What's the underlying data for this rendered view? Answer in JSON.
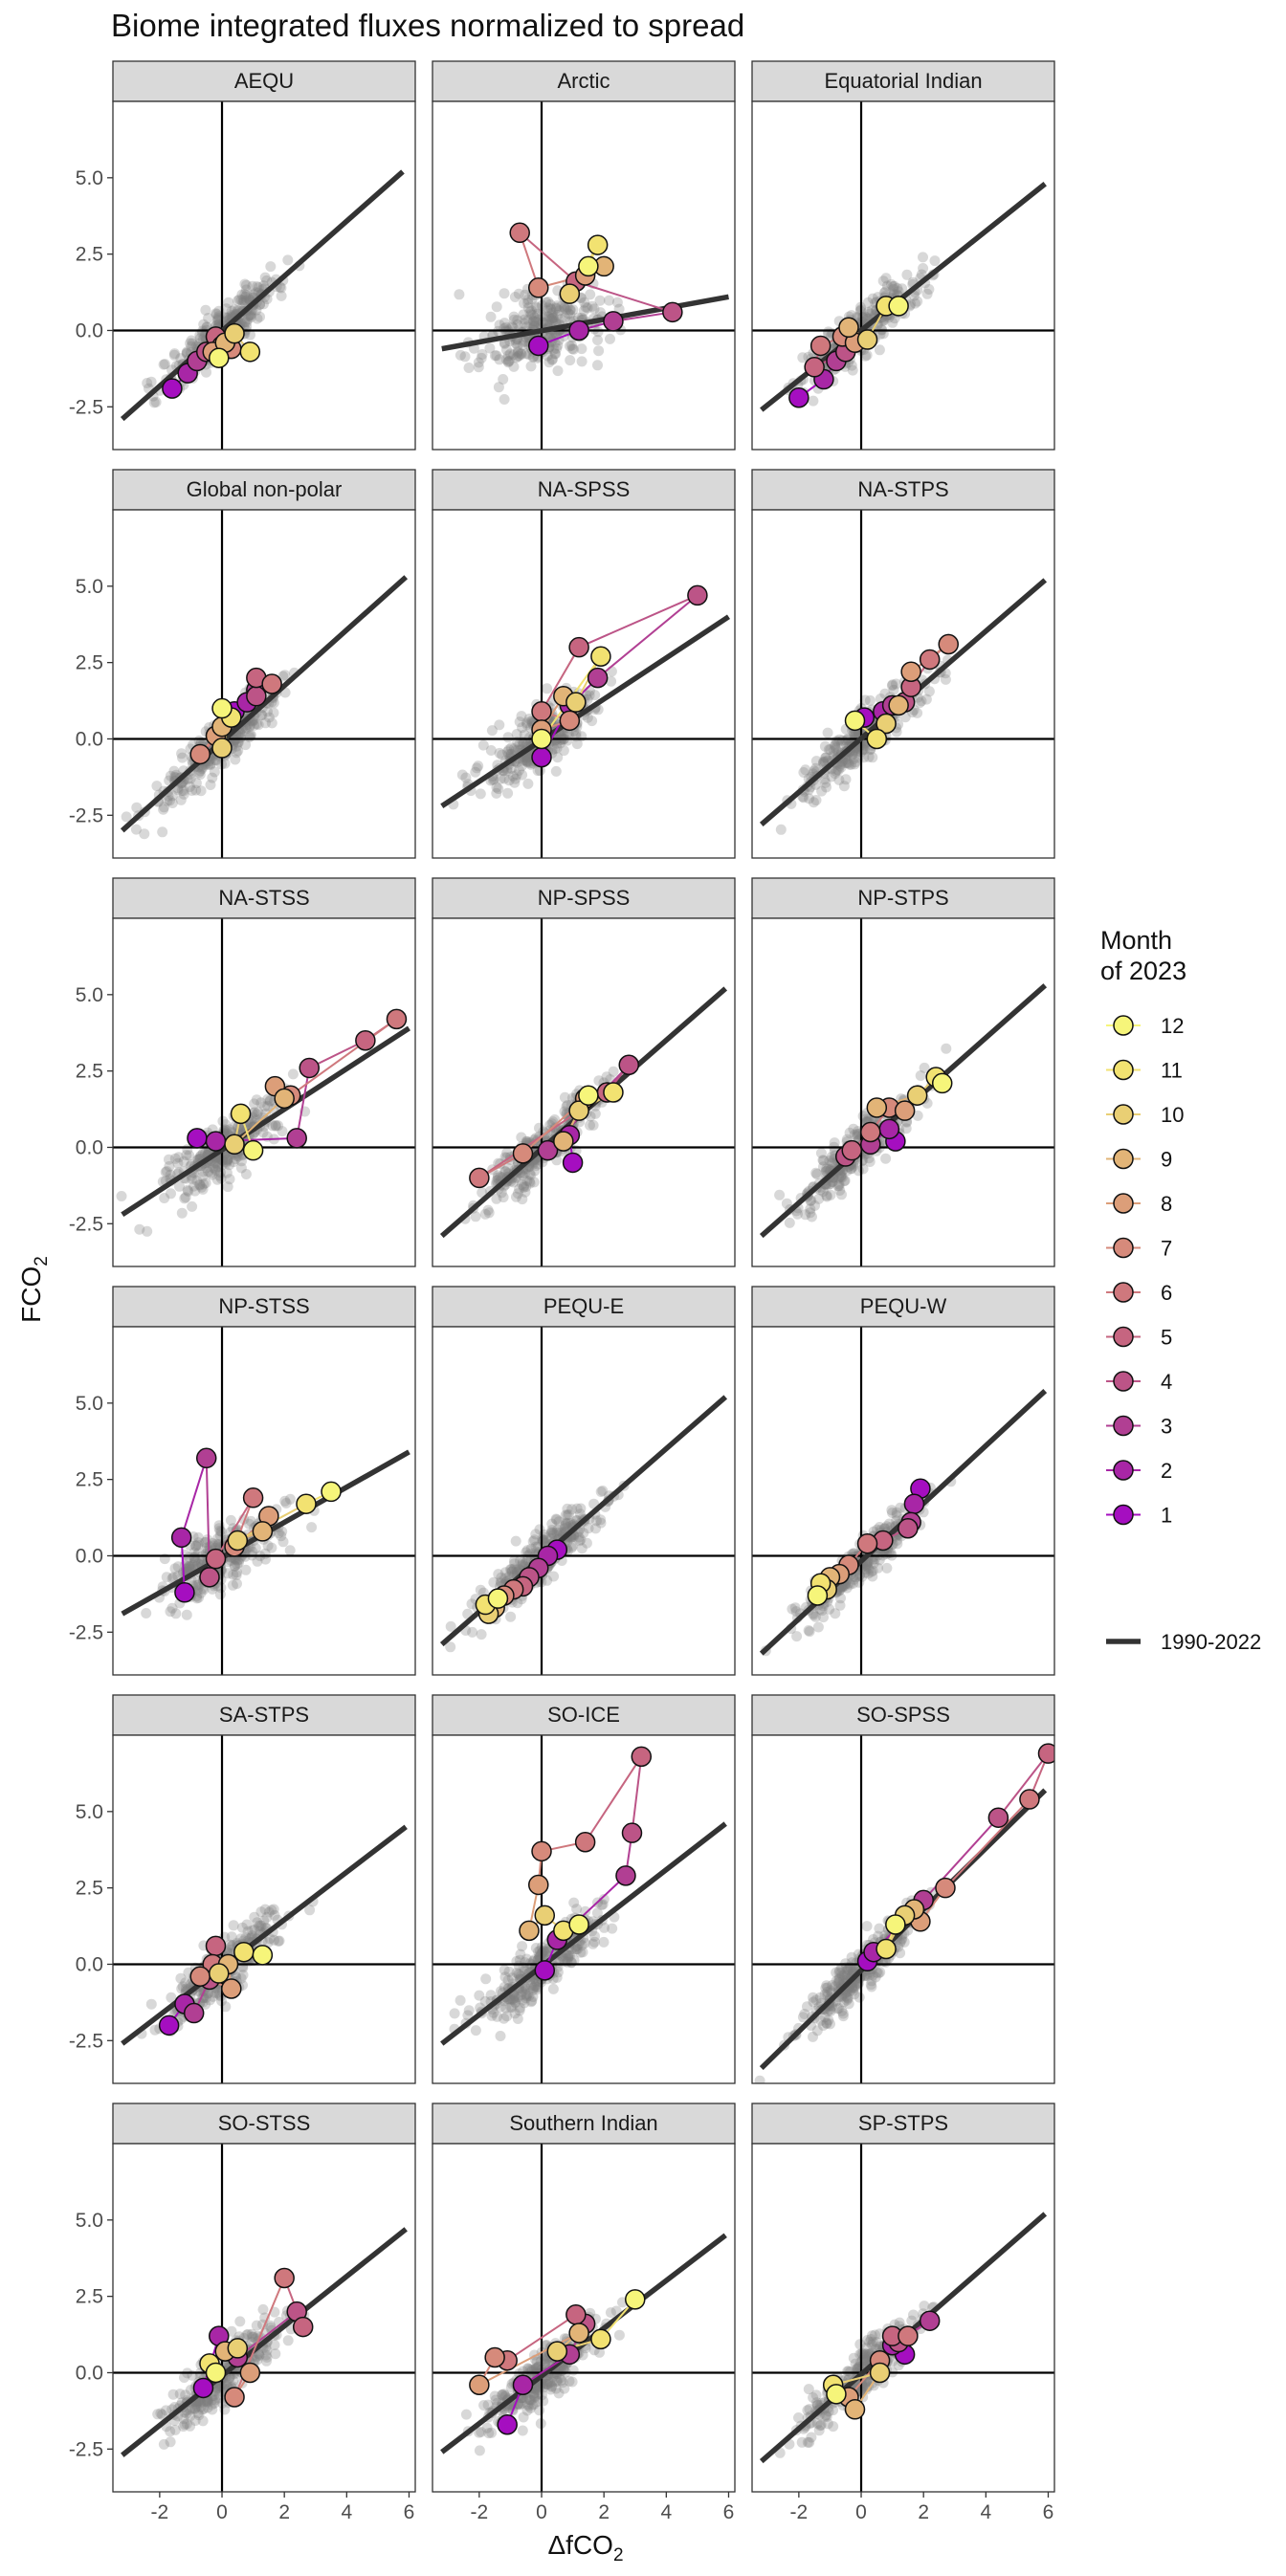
{
  "chart_data": {
    "type": "scatter",
    "title": "Biome integrated fluxes normalized to spread",
    "xlabel": "ΔfCO2",
    "ylabel": "FCO2",
    "xlim": [
      -3.5,
      6.2
    ],
    "ylim": [
      -3.9,
      7.5
    ],
    "x_ticks": [
      -2,
      0,
      2,
      4,
      6
    ],
    "y_ticks": [
      -2.5,
      0.0,
      2.5,
      5.0
    ],
    "x_tick_labels": [
      "-2",
      "0",
      "2",
      "4",
      "6"
    ],
    "y_tick_labels": [
      "-2.5",
      "0.0",
      "2.5",
      "5.0"
    ],
    "grid": false,
    "legend_position": "right",
    "legend": {
      "title_line1": "Month",
      "title_line2": "of 2023",
      "entries": [
        {
          "label": "12",
          "color": "#f6f57a"
        },
        {
          "label": "11",
          "color": "#f2e271"
        },
        {
          "label": "10",
          "color": "#e9cf74"
        },
        {
          "label": "9",
          "color": "#e2b477"
        },
        {
          "label": "8",
          "color": "#dc9e79"
        },
        {
          "label": "7",
          "color": "#d68a7b"
        },
        {
          "label": "6",
          "color": "#cf787d"
        },
        {
          "label": "5",
          "color": "#c66580"
        },
        {
          "label": "4",
          "color": "#bc5487"
        },
        {
          "label": "3",
          "color": "#b13f93"
        },
        {
          "label": "2",
          "color": "#a826a6"
        },
        {
          "label": "1",
          "color": "#a50ec0"
        }
      ],
      "line_label": "1990-2022"
    },
    "reference_color": "#333333",
    "background_points_color": "#7f7f7f",
    "panels": [
      {
        "name": "AEQU",
        "fit": [
          [
            -3.2,
            -2.9
          ],
          [
            5.8,
            5.2
          ]
        ],
        "months": [
          [
            -1.6,
            -1.9
          ],
          [
            -1.1,
            -1.4
          ],
          [
            -0.8,
            -1.0
          ],
          [
            -0.5,
            -0.7
          ],
          [
            -0.2,
            -0.2
          ],
          [
            0.0,
            -0.5
          ],
          [
            0.3,
            -0.6
          ],
          [
            -0.3,
            -0.7
          ],
          [
            0.1,
            -0.4
          ],
          [
            0.4,
            -0.1
          ],
          [
            0.9,
            -0.7
          ],
          [
            -0.1,
            -0.9
          ]
        ]
      },
      {
        "name": "Arctic",
        "fit": [
          [
            -3.2,
            -0.6
          ],
          [
            6.0,
            1.1
          ]
        ],
        "months": [
          [
            -0.1,
            -0.5
          ],
          [
            1.2,
            0.0
          ],
          [
            2.3,
            0.3
          ],
          [
            4.2,
            0.6
          ],
          [
            1.1,
            1.6
          ],
          [
            -0.7,
            3.2
          ],
          [
            -0.1,
            1.4
          ],
          [
            1.4,
            1.8
          ],
          [
            2.0,
            2.1
          ],
          [
            0.9,
            1.2
          ],
          [
            1.8,
            2.8
          ],
          [
            1.5,
            2.1
          ]
        ]
      },
      {
        "name": "Equatorial Indian",
        "fit": [
          [
            -3.2,
            -2.6
          ],
          [
            5.9,
            4.8
          ]
        ],
        "months": [
          [
            -2.0,
            -2.2
          ],
          [
            -1.2,
            -1.6
          ],
          [
            -0.8,
            -1.0
          ],
          [
            -0.5,
            -0.7
          ],
          [
            -1.5,
            -1.2
          ],
          [
            -1.3,
            -0.5
          ],
          [
            -0.6,
            -0.2
          ],
          [
            -0.2,
            -0.4
          ],
          [
            -0.4,
            0.1
          ],
          [
            0.2,
            -0.3
          ],
          [
            0.8,
            0.8
          ],
          [
            1.2,
            0.8
          ]
        ]
      },
      {
        "name": "Global non-polar",
        "fit": [
          [
            -3.2,
            -3.0
          ],
          [
            5.9,
            5.3
          ]
        ],
        "months": [
          [
            0.4,
            0.9
          ],
          [
            0.8,
            1.2
          ],
          [
            1.1,
            1.6
          ],
          [
            1.1,
            1.4
          ],
          [
            1.1,
            2.0
          ],
          [
            1.6,
            1.8
          ],
          [
            -0.7,
            -0.5
          ],
          [
            -0.2,
            0.1
          ],
          [
            0.0,
            0.4
          ],
          [
            0.0,
            -0.3
          ],
          [
            0.3,
            0.7
          ],
          [
            0.0,
            1.0
          ]
        ]
      },
      {
        "name": "NA-SPSS",
        "fit": [
          [
            -3.2,
            -2.2
          ],
          [
            6.0,
            4.0
          ]
        ],
        "months": [
          [
            0.0,
            -0.6
          ],
          [
            0.9,
            1.1
          ],
          [
            1.8,
            2.0
          ],
          [
            5.0,
            4.7
          ],
          [
            1.2,
            3.0
          ],
          [
            0.0,
            0.9
          ],
          [
            0.9,
            0.6
          ],
          [
            0.0,
            0.3
          ],
          [
            0.7,
            1.4
          ],
          [
            1.1,
            1.2
          ],
          [
            1.9,
            2.7
          ],
          [
            0.0,
            0.0
          ]
        ]
      },
      {
        "name": "NA-STPS",
        "fit": [
          [
            -3.2,
            -2.8
          ],
          [
            5.9,
            5.2
          ]
        ],
        "months": [
          [
            0.1,
            0.7
          ],
          [
            0.7,
            0.9
          ],
          [
            1.0,
            1.1
          ],
          [
            1.4,
            1.2
          ],
          [
            1.6,
            1.7
          ],
          [
            2.2,
            2.6
          ],
          [
            2.8,
            3.1
          ],
          [
            1.6,
            2.2
          ],
          [
            1.2,
            1.1
          ],
          [
            0.8,
            0.5
          ],
          [
            0.5,
            0.0
          ],
          [
            -0.2,
            0.6
          ]
        ]
      },
      {
        "name": "NA-STSS",
        "fit": [
          [
            -3.2,
            -2.2
          ],
          [
            6.0,
            3.9
          ]
        ],
        "months": [
          [
            -0.8,
            0.3
          ],
          [
            -0.2,
            0.2
          ],
          [
            2.4,
            0.3
          ],
          [
            2.8,
            2.6
          ],
          [
            4.6,
            3.5
          ],
          [
            5.6,
            4.2
          ],
          [
            2.2,
            1.7
          ],
          [
            1.7,
            2.0
          ],
          [
            2.0,
            1.6
          ],
          [
            0.4,
            0.1
          ],
          [
            0.6,
            1.1
          ],
          [
            1.0,
            -0.1
          ]
        ]
      },
      {
        "name": "NP-SPSS",
        "fit": [
          [
            -3.2,
            -2.9
          ],
          [
            5.9,
            5.2
          ]
        ],
        "months": [
          [
            1.0,
            -0.5
          ],
          [
            0.9,
            0.4
          ],
          [
            0.2,
            -0.1
          ],
          [
            2.8,
            2.7
          ],
          [
            2.1,
            1.8
          ],
          [
            -2.0,
            -1.0
          ],
          [
            -0.6,
            -0.2
          ],
          [
            1.4,
            1.6
          ],
          [
            0.7,
            0.2
          ],
          [
            1.2,
            1.2
          ],
          [
            2.3,
            1.8
          ],
          [
            1.5,
            1.7
          ]
        ]
      },
      {
        "name": "NP-STPS",
        "fit": [
          [
            -3.2,
            -2.9
          ],
          [
            5.9,
            5.3
          ]
        ],
        "months": [
          [
            1.1,
            0.2
          ],
          [
            0.9,
            0.6
          ],
          [
            0.3,
            0.1
          ],
          [
            -0.5,
            -0.3
          ],
          [
            -0.3,
            -0.1
          ],
          [
            0.3,
            0.5
          ],
          [
            0.9,
            1.3
          ],
          [
            1.4,
            1.2
          ],
          [
            0.5,
            1.3
          ],
          [
            1.8,
            1.7
          ],
          [
            2.4,
            2.3
          ],
          [
            2.6,
            2.1
          ]
        ]
      },
      {
        "name": "NP-STSS",
        "fit": [
          [
            -3.2,
            -1.9
          ],
          [
            6.0,
            3.4
          ]
        ],
        "months": [
          [
            -1.2,
            -1.2
          ],
          [
            -1.3,
            0.6
          ],
          [
            -0.5,
            3.2
          ],
          [
            -0.4,
            -0.7
          ],
          [
            -0.2,
            -0.1
          ],
          [
            1.0,
            1.9
          ],
          [
            0.4,
            0.3
          ],
          [
            1.5,
            1.3
          ],
          [
            1.3,
            0.8
          ],
          [
            0.5,
            0.5
          ],
          [
            2.7,
            1.7
          ],
          [
            3.5,
            2.1
          ]
        ]
      },
      {
        "name": "PEQU-E",
        "fit": [
          [
            -3.2,
            -2.9
          ],
          [
            5.9,
            5.2
          ]
        ],
        "months": [
          [
            0.5,
            0.2
          ],
          [
            0.2,
            0.0
          ],
          [
            -0.1,
            -0.4
          ],
          [
            -0.4,
            -0.7
          ],
          [
            -0.6,
            -1.0
          ],
          [
            -0.9,
            -1.1
          ],
          [
            -1.2,
            -1.3
          ],
          [
            -1.4,
            -1.4
          ],
          [
            -1.5,
            -1.7
          ],
          [
            -1.7,
            -1.9
          ],
          [
            -1.8,
            -1.6
          ],
          [
            -1.4,
            -1.4
          ]
        ]
      },
      {
        "name": "PEQU-W",
        "fit": [
          [
            -3.2,
            -3.2
          ],
          [
            5.9,
            5.4
          ]
        ],
        "months": [
          [
            1.9,
            2.2
          ],
          [
            1.7,
            1.7
          ],
          [
            1.6,
            1.1
          ],
          [
            1.5,
            0.9
          ],
          [
            0.7,
            0.5
          ],
          [
            0.2,
            0.4
          ],
          [
            -0.4,
            -0.3
          ],
          [
            -0.7,
            -0.6
          ],
          [
            -1.0,
            -0.7
          ],
          [
            -1.1,
            -1.1
          ],
          [
            -1.3,
            -0.9
          ],
          [
            -1.4,
            -1.3
          ]
        ]
      },
      {
        "name": "SA-STPS",
        "fit": [
          [
            -3.2,
            -2.6
          ],
          [
            5.9,
            4.5
          ]
        ],
        "months": [
          [
            -1.7,
            -2.0
          ],
          [
            -1.2,
            -1.3
          ],
          [
            -0.9,
            -1.6
          ],
          [
            -0.4,
            -0.5
          ],
          [
            -0.2,
            0.6
          ],
          [
            -0.3,
            0.0
          ],
          [
            -0.7,
            -0.4
          ],
          [
            0.3,
            -0.8
          ],
          [
            0.2,
            0.0
          ],
          [
            -0.1,
            -0.3
          ],
          [
            0.7,
            0.4
          ],
          [
            1.3,
            0.3
          ]
        ]
      },
      {
        "name": "SO-ICE",
        "fit": [
          [
            -3.2,
            -2.6
          ],
          [
            5.9,
            4.6
          ]
        ],
        "months": [
          [
            0.1,
            -0.2
          ],
          [
            0.5,
            0.8
          ],
          [
            2.7,
            2.9
          ],
          [
            2.9,
            4.3
          ],
          [
            3.2,
            6.8
          ],
          [
            1.4,
            4.0
          ],
          [
            0.0,
            3.7
          ],
          [
            -0.1,
            2.6
          ],
          [
            -0.4,
            1.1
          ],
          [
            0.1,
            1.6
          ],
          [
            0.7,
            1.1
          ],
          [
            1.2,
            1.3
          ]
        ]
      },
      {
        "name": "SO-SPSS",
        "fit": [
          [
            -3.2,
            -3.4
          ],
          [
            5.9,
            5.7
          ]
        ],
        "months": [
          [
            0.2,
            0.1
          ],
          [
            0.4,
            0.4
          ],
          [
            2.0,
            2.1
          ],
          [
            4.4,
            4.8
          ],
          [
            6.0,
            6.9
          ],
          [
            5.4,
            5.4
          ],
          [
            2.7,
            2.5
          ],
          [
            1.9,
            1.4
          ],
          [
            1.7,
            1.8
          ],
          [
            1.4,
            1.6
          ],
          [
            0.8,
            0.5
          ],
          [
            1.1,
            1.3
          ]
        ]
      },
      {
        "name": "SO-STSS",
        "fit": [
          [
            -3.2,
            -2.7
          ],
          [
            5.9,
            4.7
          ]
        ],
        "months": [
          [
            -0.6,
            -0.5
          ],
          [
            -0.1,
            1.2
          ],
          [
            0.5,
            0.5
          ],
          [
            2.4,
            2.0
          ],
          [
            2.6,
            1.5
          ],
          [
            2.0,
            3.1
          ],
          [
            0.4,
            -0.8
          ],
          [
            0.9,
            0.0
          ],
          [
            0.1,
            0.7
          ],
          [
            0.5,
            0.8
          ],
          [
            -0.4,
            0.3
          ],
          [
            -0.2,
            0.0
          ]
        ]
      },
      {
        "name": "Southern Indian",
        "fit": [
          [
            -3.2,
            -2.6
          ],
          [
            5.9,
            4.5
          ]
        ],
        "months": [
          [
            -1.1,
            -1.7
          ],
          [
            -0.6,
            -0.4
          ],
          [
            0.9,
            0.6
          ],
          [
            1.4,
            1.6
          ],
          [
            1.1,
            1.9
          ],
          [
            -1.1,
            0.4
          ],
          [
            -1.5,
            0.5
          ],
          [
            -2.0,
            -0.4
          ],
          [
            1.2,
            1.3
          ],
          [
            0.5,
            0.7
          ],
          [
            1.9,
            1.1
          ],
          [
            3.0,
            2.4
          ]
        ]
      },
      {
        "name": "SP-STPS",
        "fit": [
          [
            -3.2,
            -2.9
          ],
          [
            5.9,
            5.2
          ]
        ],
        "months": [
          [
            1.4,
            0.6
          ],
          [
            1.0,
            0.9
          ],
          [
            2.2,
            1.7
          ],
          [
            1.2,
            1.0
          ],
          [
            1.0,
            1.2
          ],
          [
            1.5,
            1.2
          ],
          [
            0.6,
            0.4
          ],
          [
            -0.4,
            -0.8
          ],
          [
            -0.2,
            -1.2
          ],
          [
            0.6,
            0.0
          ],
          [
            -0.9,
            -0.4
          ],
          [
            -0.8,
            -0.7
          ]
        ]
      }
    ]
  }
}
